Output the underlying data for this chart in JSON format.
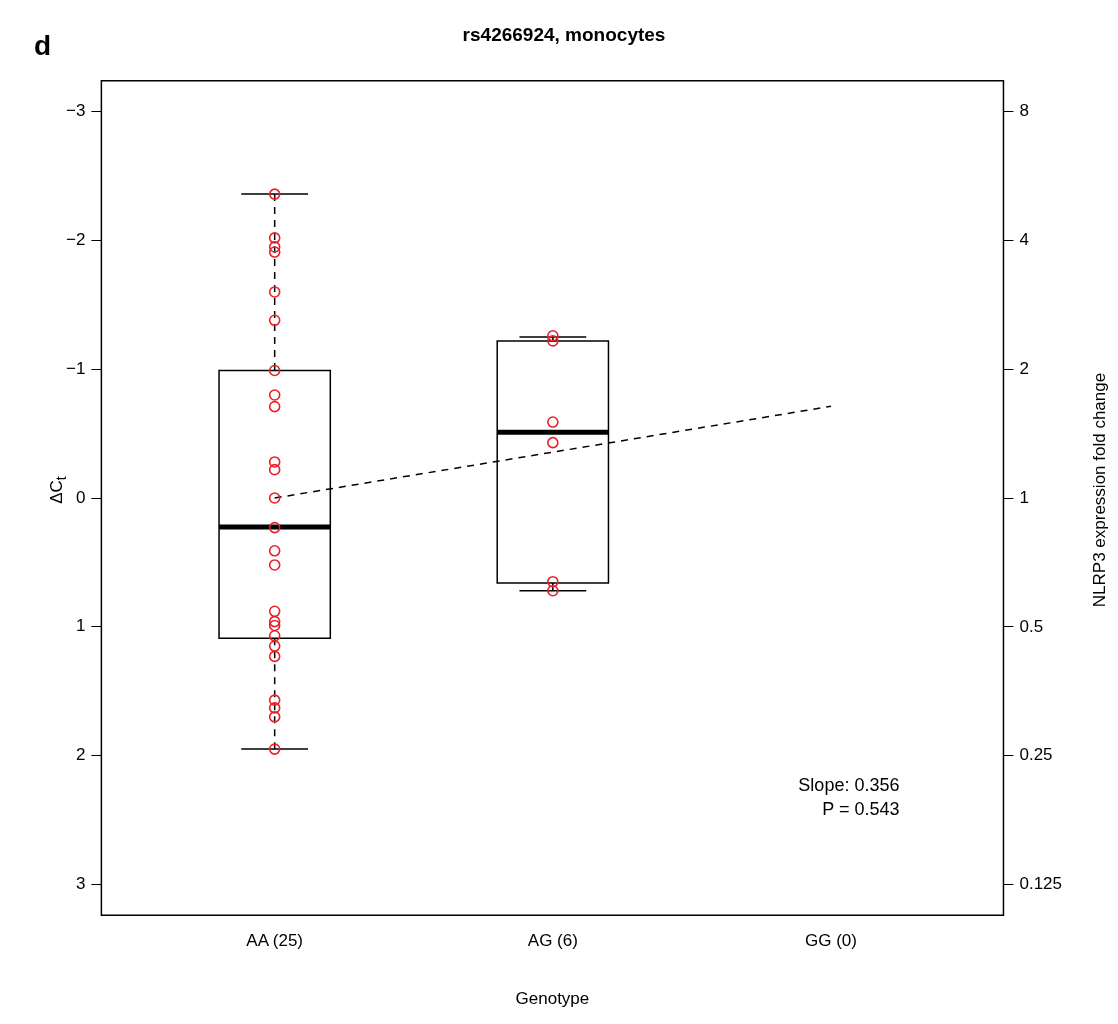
{
  "chart_data": {
    "type": "box",
    "title": "rs4266924, monocytes",
    "xlabel": "Genotype",
    "ylabel": "ΔC$_{t}$",
    "y2label": "NLRP3 expression fold change",
    "categories": [
      "AA (25)",
      "AG (6)",
      "GG (0)"
    ],
    "ylim": [
      3.24,
      -3.24
    ],
    "yticks": [
      -3,
      -2,
      -1,
      0,
      1,
      2,
      3
    ],
    "y2lim": [
      0.106,
      9.45
    ],
    "y2ticks": [
      8,
      4,
      2,
      1,
      0.5,
      0.25,
      0.125
    ],
    "log": "y2",
    "grid": false,
    "legend": false,
    "annotations": [
      "d",
      "Slope: 0.356",
      "P = 0.543"
    ],
    "series": [
      {
        "color": "#000000",
        "boxes": [
          {
            "low": -2.36,
            "q1": -0.99,
            "median": 0.225,
            "q3": 1.09,
            "high": 1.95
          },
          {
            "low": -1.25,
            "q1": -1.22,
            "median": -0.51,
            "q3": 0.66,
            "high": 0.72
          },
          null
        ]
      },
      {
        "type": "scatter",
        "color": "#e8202a",
        "marker": "circle",
        "x": [
          "AA (25)",
          "AA (25)",
          "AA (25)",
          "AA (25)",
          "AA (25)",
          "AA (25)",
          "AA (25)",
          "AA (25)",
          "AA (25)",
          "AA (25)",
          "AA (25)",
          "AA (25)",
          "AA (25)",
          "AA (25)",
          "AA (25)",
          "AA (25)",
          "AA (25)",
          "AA (25)",
          "AA (25)",
          "AA (25)",
          "AA (25)",
          "AA (25)",
          "AA (25)",
          "AA (25)",
          "AA (25)",
          "AG (6)",
          "AG (6)",
          "AG (6)",
          "AG (6)",
          "AG (6)",
          "AG (6)"
        ],
        "values": [
          -2.36,
          -2.02,
          -1.95,
          -1.91,
          -1.6,
          -1.38,
          -0.99,
          -0.8,
          -0.71,
          -0.28,
          -0.22,
          0,
          0.23,
          0.41,
          0.52,
          0.88,
          0.96,
          0.99,
          1.07,
          1.15,
          1.23,
          1.57,
          1.63,
          1.7,
          1.95,
          -1.26,
          -1.22,
          -0.59,
          -0.43,
          0.65,
          0.72
        ]
      },
      {
        "type": "line",
        "color": "#000000",
        "line_style": "dashed",
        "marker": "none",
        "x": [
          "AA (25)",
          "AG (6)",
          "GG (0)"
        ],
        "values": [
          0,
          -0.356,
          -0.712
        ]
      }
    ]
  }
}
